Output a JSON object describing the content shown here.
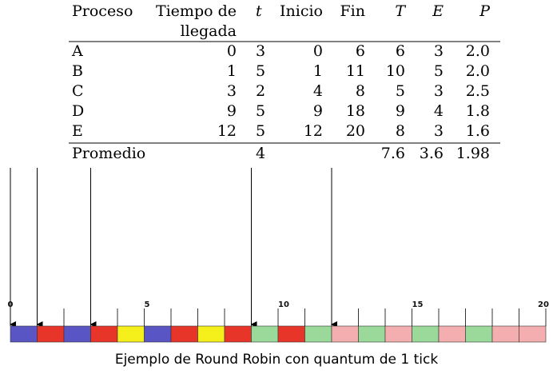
{
  "table": {
    "headers": [
      "Proceso",
      "Tiempo de",
      "llegada",
      "t",
      "Inicio",
      "Fin",
      "T",
      "E",
      "P"
    ],
    "rows": [
      [
        "A",
        "0",
        "3",
        "0",
        "6",
        "6",
        "3",
        "2.0"
      ],
      [
        "B",
        "1",
        "5",
        "1",
        "11",
        "10",
        "5",
        "2.0"
      ],
      [
        "C",
        "3",
        "2",
        "4",
        "8",
        "5",
        "3",
        "2.5"
      ],
      [
        "D",
        "9",
        "5",
        "9",
        "18",
        "9",
        "4",
        "1.8"
      ],
      [
        "E",
        "12",
        "5",
        "12",
        "20",
        "8",
        "3",
        "1.6"
      ]
    ],
    "average_label": "Promedio",
    "average": {
      "t": "4",
      "T": "7.6",
      "E": "3.6",
      "P": "1.98"
    }
  },
  "diagram": {
    "colors": {
      "A": "#5a55c4",
      "B": "#e8352a",
      "C": "#f5ef1c",
      "D": "#9ad99a",
      "E": "#f5aeb0",
      "wait": "#000000"
    },
    "processes": [
      {
        "name": "A",
        "arrival": 0,
        "cells": [
          "A",
          "wait",
          "A",
          "wait",
          "wait",
          "A"
        ]
      },
      {
        "name": "B",
        "arrival": 1,
        "cells": [
          "B",
          "wait",
          "B",
          "wait",
          "wait",
          "B",
          "wait",
          "B",
          "wait",
          "B"
        ]
      },
      {
        "name": "C",
        "arrival": 3,
        "cells": [
          "wait",
          "C",
          "wait",
          "wait",
          "C"
        ]
      },
      {
        "name": "D",
        "arrival": 9,
        "cells": [
          "D",
          "wait",
          "D",
          "wait",
          "D",
          "wait",
          "D",
          "wait",
          "D"
        ]
      },
      {
        "name": "E",
        "arrival": 12,
        "cells": [
          "E",
          "wait",
          "E",
          "wait",
          "E",
          "wait",
          "E",
          "E"
        ]
      }
    ],
    "timeline": [
      "A",
      "B",
      "A",
      "B",
      "C",
      "A",
      "B",
      "C",
      "B",
      "D",
      "B",
      "D",
      "E",
      "D",
      "E",
      "D",
      "E",
      "D",
      "E",
      "E"
    ],
    "ticks": [
      {
        "value": 0,
        "label": "0"
      },
      {
        "value": 5,
        "label": "5"
      },
      {
        "value": 10,
        "label": "10"
      },
      {
        "value": 15,
        "label": "15"
      },
      {
        "value": 20,
        "label": "20"
      }
    ]
  },
  "caption": "Ejemplo de Round Robin con quantum de 1 tick"
}
